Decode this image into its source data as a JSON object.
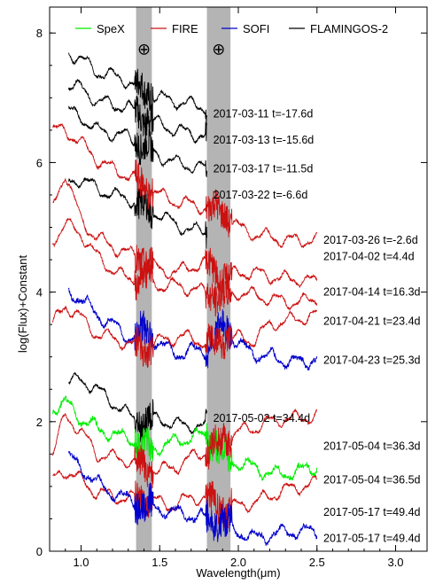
{
  "chart_data": {
    "type": "line",
    "title": "",
    "xlabel": "Wavelength(μm)",
    "ylabel": "log(Flux)+Constant",
    "xlim": [
      0.8,
      3.2
    ],
    "ylim": [
      0,
      8.4
    ],
    "xticks": [
      1.0,
      1.5,
      2.0,
      2.5,
      3.0
    ],
    "xtick_labels": [
      "1.0",
      "1.5",
      "2.0",
      "2.5",
      "3.0"
    ],
    "yticks": [
      0,
      2,
      4,
      6,
      8
    ],
    "ytick_labels": [
      "0",
      "2",
      "4",
      "6",
      "8"
    ],
    "grid": false,
    "legend": {
      "placement": "top",
      "entries": [
        {
          "name": "SpeX",
          "color": "#00ee00"
        },
        {
          "name": "FIRE",
          "color": "#cc1111"
        },
        {
          "name": "SOFI",
          "color": "#0000cc"
        },
        {
          "name": "FLAMINGOS-2",
          "color": "#000000"
        }
      ]
    },
    "telluric_bands": [
      {
        "x": [
          1.35,
          1.45
        ],
        "symbol": "⊕",
        "color": "#b4b4b4"
      },
      {
        "x": [
          1.8,
          1.95
        ],
        "symbol": "⊕",
        "color": "#b4b4b4"
      }
    ],
    "series": [
      {
        "label": "2017-03-11 t=-17.6d",
        "instrument": "FLAMINGOS-2",
        "color": "#000000",
        "x": [
          0.92,
          1.0,
          1.1,
          1.2,
          1.3,
          1.4,
          1.5,
          1.6,
          1.7,
          1.8
        ],
        "y": [
          7.7,
          7.6,
          7.4,
          7.35,
          7.25,
          7.1,
          7.0,
          6.95,
          6.9,
          6.85
        ],
        "label_y": 6.75
      },
      {
        "label": "2017-03-13 t=-15.6d",
        "instrument": "FLAMINGOS-2",
        "color": "#000000",
        "x": [
          0.92,
          1.0,
          1.1,
          1.2,
          1.3,
          1.4,
          1.5,
          1.6,
          1.7,
          1.8
        ],
        "y": [
          7.2,
          7.15,
          6.95,
          6.9,
          6.85,
          6.7,
          6.6,
          6.5,
          6.45,
          6.4
        ],
        "label_y": 6.35
      },
      {
        "label": "2017-03-17 t=-11.5d",
        "instrument": "FLAMINGOS-2",
        "color": "#000000",
        "x": [
          0.92,
          1.0,
          1.1,
          1.2,
          1.3,
          1.4,
          1.5,
          1.6,
          1.7,
          1.8
        ],
        "y": [
          6.8,
          6.7,
          6.5,
          6.45,
          6.4,
          6.25,
          6.1,
          6.0,
          5.95,
          5.9
        ],
        "label_y": 5.9
      },
      {
        "label": "2017-03-22 t=-6.6d",
        "instrument": "FLAMINGOS-2",
        "color": "#000000",
        "x": [
          0.92,
          1.0,
          1.1,
          1.2,
          1.3,
          1.4,
          1.5,
          1.6,
          1.7,
          1.8
        ],
        "y": [
          5.7,
          5.75,
          5.6,
          5.5,
          5.45,
          5.3,
          5.2,
          5.05,
          4.95,
          4.95
        ],
        "label_y": 5.5
      },
      {
        "label": "2017-03-26 t=-2.6d",
        "instrument": "FIRE",
        "color": "#cc1111",
        "x": [
          0.82,
          0.9,
          1.0,
          1.1,
          1.2,
          1.3,
          1.4,
          1.5,
          1.6,
          1.7,
          1.8,
          1.9,
          2.0,
          2.1,
          2.2,
          2.3,
          2.4,
          2.5
        ],
        "y": [
          6.5,
          6.5,
          6.3,
          6.05,
          5.9,
          5.8,
          5.65,
          5.5,
          5.4,
          5.35,
          5.3,
          5.25,
          5.0,
          4.9,
          4.85,
          4.8,
          4.8,
          4.8
        ],
        "label_y": 4.8
      },
      {
        "label": "2017-04-02 t=4.4d",
        "instrument": "FIRE",
        "color": "#cc1111",
        "x": [
          0.82,
          0.9,
          1.0,
          1.1,
          1.2,
          1.3,
          1.4,
          1.5,
          1.6,
          1.7,
          1.8,
          1.9,
          2.0,
          2.1,
          2.2,
          2.3,
          2.4,
          2.5
        ],
        "y": [
          5.3,
          5.85,
          5.1,
          4.85,
          4.7,
          4.6,
          4.5,
          4.35,
          4.3,
          4.4,
          4.45,
          4.2,
          4.3,
          4.3,
          4.25,
          4.2,
          4.2,
          4.15
        ],
        "label_y": 4.55
      },
      {
        "label": "2017-04-14 t=16.3d",
        "instrument": "FIRE",
        "color": "#cc1111",
        "x": [
          0.82,
          0.9,
          1.0,
          1.1,
          1.2,
          1.3,
          1.4,
          1.5,
          1.6,
          1.7,
          1.8,
          1.9,
          2.0,
          2.1,
          2.2,
          2.3,
          2.4,
          2.5
        ],
        "y": [
          4.8,
          5.05,
          4.9,
          4.55,
          4.35,
          4.2,
          4.25,
          4.1,
          4.1,
          4.05,
          4.0,
          3.9,
          4.0,
          3.95,
          3.9,
          3.85,
          3.85,
          3.9
        ],
        "label_y": 4.0
      },
      {
        "label": "2017-04-21 t=23.4d",
        "instrument": "SOFI",
        "color": "#0000cc",
        "x": [
          0.92,
          1.0,
          1.1,
          1.2,
          1.3,
          1.4,
          1.5,
          1.6,
          1.7,
          1.8,
          1.9,
          2.0,
          2.1,
          2.2,
          2.3,
          2.4,
          2.5
        ],
        "y": [
          4.0,
          3.9,
          3.65,
          3.5,
          3.3,
          3.4,
          3.2,
          3.05,
          3.1,
          3.1,
          3.5,
          3.2,
          3.05,
          3.0,
          2.95,
          2.9,
          3.0
        ],
        "label_y": 3.55
      },
      {
        "label": "2017-04-23 t=25.3d",
        "instrument": "FIRE",
        "color": "#cc1111",
        "x": [
          0.82,
          0.9,
          1.0,
          1.1,
          1.2,
          1.3,
          1.4,
          1.5,
          1.6,
          1.7,
          1.8,
          1.9,
          2.0,
          2.1,
          2.2,
          2.3,
          2.4,
          2.5
        ],
        "y": [
          3.5,
          3.8,
          3.6,
          3.35,
          3.3,
          3.2,
          3.1,
          3.25,
          3.3,
          3.3,
          3.2,
          3.25,
          3.3,
          3.25,
          3.5,
          3.55,
          3.6,
          3.65
        ],
        "label_y": 2.95
      },
      {
        "label": "2017-05-02 t=34.4d",
        "instrument": "FLAMINGOS-2",
        "color": "#000000",
        "x": [
          0.92,
          1.0,
          1.1,
          1.2,
          1.3,
          1.4,
          1.5,
          1.6,
          1.7,
          1.8
        ],
        "y": [
          2.6,
          2.65,
          2.5,
          2.3,
          2.1,
          2.0,
          2.05,
          1.95,
          1.95,
          1.9
        ],
        "label_y": 2.05
      },
      {
        "label": "2017-05-04 t=36.3d",
        "instrument": "SpeX",
        "color": "#00ee00",
        "x": [
          0.82,
          0.9,
          1.0,
          1.1,
          1.2,
          1.3,
          1.4,
          1.5,
          1.6,
          1.7,
          1.8,
          1.9,
          2.0,
          2.1,
          2.2,
          2.3,
          2.4,
          2.5
        ],
        "y": [
          2.2,
          2.3,
          2.05,
          1.9,
          1.8,
          1.75,
          1.6,
          1.6,
          1.7,
          1.75,
          1.8,
          1.5,
          1.35,
          1.3,
          1.2,
          1.2,
          1.25,
          1.3
        ],
        "label_y": 1.62
      },
      {
        "label": "2017-05-04 t=36.5d",
        "instrument": "FIRE",
        "color": "#cc1111",
        "x": [
          0.82,
          0.9,
          1.0,
          1.1,
          1.2,
          1.3,
          1.4,
          1.5,
          1.6,
          1.7,
          1.8,
          1.9,
          2.0,
          2.1,
          2.2,
          2.3,
          2.4,
          2.5
        ],
        "y": [
          1.5,
          2.1,
          1.85,
          1.5,
          1.45,
          1.4,
          1.3,
          1.25,
          1.3,
          1.45,
          1.55,
          1.7,
          1.85,
          1.9,
          2.0,
          2.05,
          2.05,
          2.1
        ],
        "label_y": 1.1
      },
      {
        "label": "2017-05-17 t=49.4d",
        "instrument": "FIRE",
        "color": "#cc1111",
        "x": [
          0.82,
          0.9,
          1.0,
          1.1,
          1.2,
          1.3,
          1.4,
          1.5,
          1.6,
          1.7,
          1.8,
          1.9,
          2.0,
          2.1,
          2.2,
          2.3,
          2.4,
          2.5
        ],
        "y": [
          1.1,
          1.25,
          1.1,
          0.9,
          0.85,
          0.8,
          0.85,
          0.75,
          0.7,
          0.85,
          0.8,
          0.65,
          0.7,
          0.75,
          0.85,
          0.95,
          1.0,
          1.05
        ],
        "label_y": 0.6
      },
      {
        "label": "2017-05-17 t=49.4d",
        "instrument": "SOFI",
        "color": "#0000cc",
        "x": [
          0.92,
          1.0,
          1.1,
          1.2,
          1.3,
          1.4,
          1.5,
          1.6,
          1.7,
          1.8,
          1.9,
          2.0,
          2.1,
          2.2,
          2.3,
          2.4,
          2.5
        ],
        "y": [
          1.45,
          1.3,
          1.05,
          0.9,
          0.8,
          0.7,
          0.65,
          0.6,
          0.55,
          0.5,
          0.45,
          0.3,
          0.2,
          0.25,
          0.3,
          0.3,
          0.3
        ],
        "label_y": 0.2
      }
    ]
  }
}
